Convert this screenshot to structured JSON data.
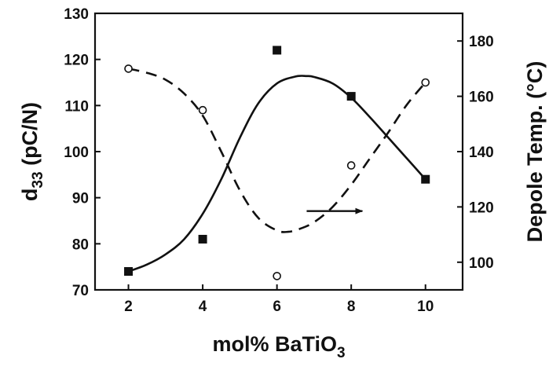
{
  "chart_data": {
    "type": "scatter",
    "x": [
      2,
      4,
      6,
      8,
      10
    ],
    "xlabel": {
      "main": "mol% BaTiO",
      "sub": "3"
    },
    "ylabel_left": {
      "main": "d",
      "sub": "33",
      "rest": " (pC/N)"
    },
    "ylabel_right": "Depole Temp. (°C)",
    "xlim": [
      1.1,
      11
    ],
    "xticks": [
      2,
      4,
      6,
      8,
      10
    ],
    "ylim_left": [
      70,
      130
    ],
    "yticks_left": [
      70,
      80,
      90,
      100,
      110,
      120,
      130
    ],
    "ylim_right": [
      90,
      190
    ],
    "yticks_right": [
      100,
      120,
      140,
      160,
      180
    ],
    "grid": false,
    "series": [
      {
        "marker": "filled-square",
        "axis": "left",
        "values": [
          74,
          81,
          122,
          112,
          94
        ],
        "fit_curve": {
          "style": "solid",
          "x": [
            2,
            2.5,
            3,
            3.5,
            4,
            4.5,
            5,
            5.5,
            6,
            6.5,
            6.8,
            7,
            7.5,
            8,
            8.5,
            9,
            9.5,
            10
          ],
          "y": [
            74,
            75.5,
            77.7,
            81,
            86.5,
            94,
            103,
            110.5,
            114.8,
            116.3,
            116.4,
            116.2,
            114.8,
            111.7,
            107.5,
            103,
            98.5,
            94
          ]
        }
      },
      {
        "marker": "open-circle",
        "axis": "right",
        "values": [
          170,
          155,
          95,
          135,
          165
        ],
        "fit_curve": {
          "style": "dashed",
          "x": [
            2,
            2.5,
            3,
            3.5,
            4,
            4.5,
            5,
            5.5,
            6,
            6.3,
            6.6,
            7,
            7.5,
            8,
            8.5,
            9,
            9.5,
            10
          ],
          "y": [
            170,
            168.5,
            166,
            161,
            153,
            140,
            126,
            116,
            111.5,
            111,
            112,
            114.5,
            120,
            128,
            137.5,
            147,
            157,
            165
          ]
        }
      }
    ],
    "annotations": [
      {
        "type": "arrow",
        "direction": "right",
        "from": [
          6.8,
          118.5
        ],
        "to": [
          8.3,
          118.5
        ],
        "axis": "right"
      }
    ]
  }
}
